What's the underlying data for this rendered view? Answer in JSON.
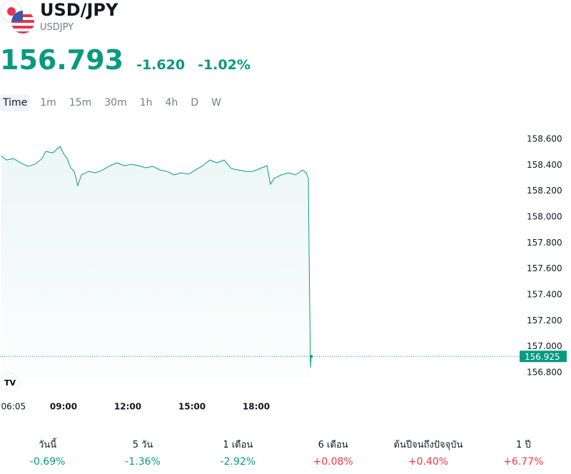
{
  "header": {
    "title": "USD/JPY",
    "symbol": "USDJPY",
    "price": "156.793",
    "change": "-1.620",
    "change_percent": "-1.02%"
  },
  "intervals": [
    "Time",
    "1m",
    "15m",
    "30m",
    "1h",
    "4h",
    "D",
    "W"
  ],
  "chart_data": {
    "type": "area",
    "color": "#089981",
    "x": [
      "06:05",
      "06:20",
      "06:40",
      "07:00",
      "07:20",
      "07:40",
      "08:00",
      "08:10",
      "08:30",
      "08:50",
      "09:00",
      "09:10",
      "09:20",
      "09:30",
      "09:40",
      "09:50",
      "10:10",
      "10:30",
      "10:50",
      "11:10",
      "11:30",
      "11:50",
      "12:10",
      "12:30",
      "12:50",
      "13:10",
      "13:30",
      "13:50",
      "14:10",
      "14:30",
      "14:50",
      "15:10",
      "15:30",
      "15:50",
      "16:10",
      "16:30",
      "16:50",
      "17:10",
      "17:30",
      "17:50",
      "18:10",
      "18:30",
      "18:40",
      "18:50",
      "19:10",
      "19:30",
      "19:50",
      "20:10",
      "20:20",
      "20:26",
      "20:28",
      "20:32",
      "20:34"
    ],
    "values": [
      158.473,
      158.44,
      158.451,
      158.418,
      158.391,
      158.407,
      158.451,
      158.506,
      158.495,
      158.545,
      158.49,
      158.451,
      158.38,
      158.352,
      158.242,
      158.325,
      158.352,
      158.341,
      158.363,
      158.396,
      158.418,
      158.396,
      158.407,
      158.396,
      158.38,
      158.391,
      158.363,
      158.352,
      158.325,
      158.341,
      158.33,
      158.363,
      158.396,
      158.44,
      158.418,
      158.44,
      158.374,
      158.363,
      158.352,
      158.352,
      158.374,
      158.396,
      158.253,
      158.297,
      158.325,
      158.341,
      158.325,
      158.363,
      158.341,
      158.297,
      157.747,
      156.838,
      156.932
    ],
    "xlim": [
      "06:00",
      "20:40"
    ],
    "xticks": [
      "06:05",
      "09:00",
      "12:00",
      "15:00",
      "18:00"
    ],
    "ylim": [
      156.8,
      158.6
    ],
    "yticks": [
      {
        "value": 156.8,
        "label": "156.800"
      },
      {
        "value": 157.0,
        "label": "157.000"
      },
      {
        "value": 157.2,
        "label": "157.200"
      },
      {
        "value": 157.4,
        "label": "157.400"
      },
      {
        "value": 157.6,
        "label": "157.600"
      },
      {
        "value": 157.8,
        "label": "157.800"
      },
      {
        "value": 158.0,
        "label": "158.000"
      },
      {
        "value": 158.2,
        "label": "158.200"
      },
      {
        "value": 158.4,
        "label": "158.400"
      },
      {
        "value": 158.6,
        "label": "158.600"
      }
    ],
    "last_price": {
      "value": 156.925,
      "label": "156.925"
    }
  },
  "performance": {
    "up_color": "#f23645",
    "down_color": "#089981",
    "periods": [
      {
        "label": "วันนี้",
        "value": -0.69,
        "value_label": "-0.69%"
      },
      {
        "label": "5 วัน",
        "value": -1.36,
        "value_label": "-1.36%"
      },
      {
        "label": "1 เดือน",
        "value": -2.92,
        "value_label": "-2.92%"
      },
      {
        "label": "6 เดือน",
        "value": 0.08,
        "value_label": "+0.08%"
      },
      {
        "label": "ต้นปีจนถึงปัจจุบัน",
        "value": 0.4,
        "value_label": "+0.40%"
      },
      {
        "label": "1 ปี",
        "value": 6.77,
        "value_label": "+6.77%"
      }
    ]
  }
}
